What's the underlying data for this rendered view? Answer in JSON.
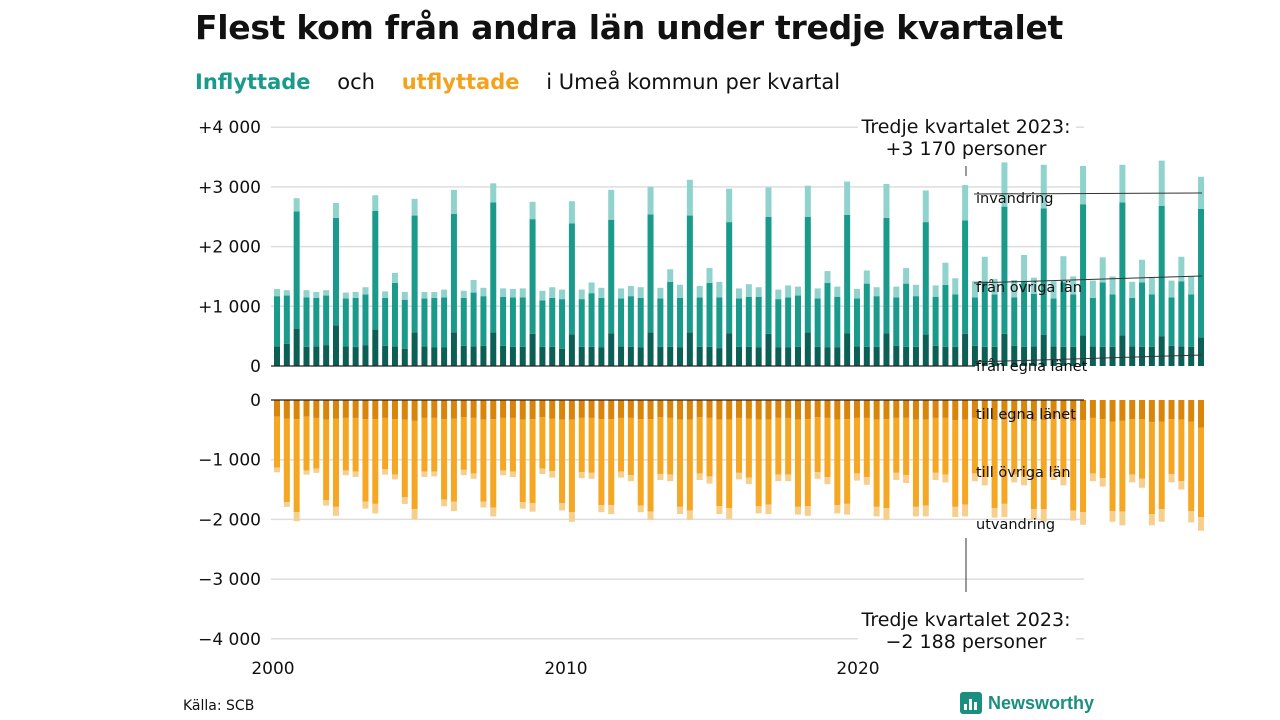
{
  "header": {
    "title": "Flest kom från andra län under tredje kvartalet",
    "subtitle_in": "Inflyttade",
    "subtitle_and": "och",
    "subtitle_out": "utflyttade",
    "subtitle_rest": "i Umeå  kommun  per  kvartal"
  },
  "footer": {
    "source": "Källa: SCB",
    "brand": "Newsworthy"
  },
  "colors": {
    "in_own_county": "#0c5f55",
    "in_other_counties": "#1a9a8a",
    "in_immigration": "#8fd3cc",
    "out_own_county": "#d9850a",
    "out_other_counties": "#f5a623",
    "out_emigration": "#f7cf8c"
  },
  "chart_data": {
    "type": "bar",
    "stacked": true,
    "x_ticks": [
      "2000",
      "2010",
      "2020"
    ],
    "y_ticks_top": [
      "+4 000",
      "+3 000",
      "+2 000",
      "+1 000",
      "0"
    ],
    "y_ticks_bottom": [
      "0",
      "−1 000",
      "−2 000",
      "−3 000",
      "−4 000"
    ],
    "ylim_top": [
      0,
      4000
    ],
    "ylim_bottom": [
      -4000,
      0
    ],
    "grid": true,
    "series_labels": {
      "in_immigration": "invandring",
      "in_other_counties": "från övriga län",
      "in_own_county": "från egna länet",
      "out_own_county": "till egna länet",
      "out_other_counties": "till övriga län",
      "out_emigration": "utvandring"
    },
    "annotations": {
      "top_line1": "Tredje kvartalet 2023:",
      "top_line2": "+3 170 personer",
      "bottom_line1": "Tredje kvartalet 2023:",
      "bottom_line2": "−2 188 personer"
    },
    "quarters": [
      "2000 Q1",
      "2000 Q2",
      "2000 Q3",
      "2000 Q4",
      "2001 Q1",
      "2001 Q2",
      "2001 Q3",
      "2001 Q4",
      "2002 Q1",
      "2002 Q2",
      "2002 Q3",
      "2002 Q4",
      "2003 Q1",
      "2003 Q2",
      "2003 Q3",
      "2003 Q4",
      "2004 Q1",
      "2004 Q2",
      "2004 Q3",
      "2004 Q4",
      "2005 Q1",
      "2005 Q2",
      "2005 Q3",
      "2005 Q4",
      "2006 Q1",
      "2006 Q2",
      "2006 Q3",
      "2006 Q4",
      "2007 Q1",
      "2007 Q2",
      "2007 Q3",
      "2007 Q4",
      "2008 Q1",
      "2008 Q2",
      "2008 Q3",
      "2008 Q4",
      "2009 Q1",
      "2009 Q2",
      "2009 Q3",
      "2009 Q4",
      "2010 Q1",
      "2010 Q2",
      "2010 Q3",
      "2010 Q4",
      "2011 Q1",
      "2011 Q2",
      "2011 Q3",
      "2011 Q4",
      "2012 Q1",
      "2012 Q2",
      "2012 Q3",
      "2012 Q4",
      "2013 Q1",
      "2013 Q2",
      "2013 Q3",
      "2013 Q4",
      "2014 Q1",
      "2014 Q2",
      "2014 Q3",
      "2014 Q4",
      "2015 Q1",
      "2015 Q2",
      "2015 Q3",
      "2015 Q4",
      "2016 Q1",
      "2016 Q2",
      "2016 Q3",
      "2016 Q4",
      "2017 Q1",
      "2017 Q2",
      "2017 Q3",
      "2017 Q4",
      "2018 Q1",
      "2018 Q2",
      "2018 Q3",
      "2018 Q4",
      "2019 Q1",
      "2019 Q2",
      "2019 Q3",
      "2019 Q4",
      "2020 Q1",
      "2020 Q2",
      "2020 Q3",
      "2020 Q4",
      "2021 Q1",
      "2021 Q2",
      "2021 Q3",
      "2021 Q4",
      "2022 Q1",
      "2022 Q2",
      "2022 Q3",
      "2022 Q4",
      "2023 Q1",
      "2023 Q2",
      "2023 Q3"
    ],
    "in_own_county": [
      330,
      370,
      620,
      320,
      330,
      350,
      680,
      330,
      320,
      350,
      610,
      340,
      330,
      290,
      560,
      330,
      310,
      310,
      560,
      340,
      330,
      340,
      560,
      340,
      320,
      320,
      540,
      320,
      320,
      290,
      530,
      320,
      320,
      310,
      550,
      330,
      320,
      310,
      560,
      320,
      320,
      310,
      560,
      320,
      320,
      300,
      550,
      320,
      320,
      310,
      540,
      310,
      310,
      320,
      560,
      320,
      310,
      310,
      550,
      330,
      320,
      320,
      550,
      340,
      320,
      320,
      530,
      340,
      320,
      320,
      540,
      340,
      320,
      320,
      540,
      340,
      320,
      330,
      520,
      330,
      320,
      320,
      510,
      330,
      320,
      320,
      510,
      330,
      320,
      320,
      500,
      340,
      330,
      320,
      480
    ],
    "in_other_counties": [
      840,
      810,
      1970,
      830,
      810,
      830,
      1800,
      800,
      820,
      850,
      1990,
      800,
      1060,
      820,
      1960,
      800,
      830,
      840,
      1990,
      800,
      900,
      830,
      2180,
      820,
      830,
      830,
      1920,
      780,
      820,
      830,
      1860,
      800,
      900,
      830,
      1900,
      800,
      850,
      830,
      1980,
      810,
      1090,
      830,
      1960,
      830,
      1070,
      850,
      1860,
      810,
      840,
      850,
      1960,
      810,
      840,
      860,
      1940,
      810,
      1080,
      850,
      1980,
      800,
      1060,
      850,
      1930,
      810,
      1060,
      850,
      1880,
      820,
      1040,
      880,
      1900,
      810,
      1100,
      880,
      2130,
      810,
      1100,
      880,
      2120,
      800,
      1080,
      880,
      2200,
      810,
      1080,
      880,
      2230,
      810,
      1080,
      880,
      2180,
      810,
      1090,
      880,
      2150
    ],
    "in_immigration": [
      120,
      90,
      220,
      120,
      100,
      90,
      250,
      100,
      100,
      120,
      260,
      110,
      170,
      130,
      280,
      110,
      100,
      130,
      400,
      120,
      210,
      140,
      320,
      140,
      140,
      150,
      290,
      160,
      180,
      160,
      370,
      160,
      180,
      170,
      500,
      170,
      170,
      180,
      460,
      180,
      210,
      220,
      600,
      190,
      250,
      260,
      560,
      170,
      210,
      160,
      490,
      160,
      200,
      150,
      520,
      170,
      200,
      170,
      560,
      160,
      220,
      150,
      570,
      180,
      260,
      190,
      530,
      190,
      370,
      270,
      590,
      270,
      410,
      260,
      740,
      290,
      440,
      270,
      730,
      290,
      440,
      300,
      640,
      290,
      420,
      300,
      630,
      270,
      380,
      280,
      760,
      280,
      410,
      300,
      540
    ],
    "out_own_county": [
      280,
      310,
      320,
      280,
      300,
      330,
      310,
      300,
      300,
      320,
      320,
      300,
      320,
      330,
      350,
      300,
      300,
      320,
      310,
      290,
      300,
      330,
      320,
      300,
      300,
      330,
      320,
      290,
      310,
      330,
      330,
      300,
      300,
      320,
      320,
      300,
      300,
      320,
      320,
      290,
      300,
      330,
      330,
      290,
      300,
      330,
      330,
      300,
      310,
      330,
      330,
      300,
      300,
      330,
      320,
      290,
      300,
      330,
      320,
      300,
      300,
      330,
      320,
      300,
      300,
      330,
      330,
      300,
      300,
      340,
      330,
      300,
      310,
      340,
      330,
      310,
      310,
      350,
      340,
      300,
      310,
      350,
      340,
      300,
      320,
      360,
      350,
      320,
      320,
      370,
      360,
      320,
      330,
      360,
      460
    ],
    "out_other_counties": [
      850,
      1400,
      1560,
      900,
      850,
      1350,
      1480,
      880,
      900,
      1380,
      1420,
      860,
      930,
      1300,
      1480,
      900,
      900,
      1350,
      1390,
      880,
      930,
      1370,
      1480,
      880,
      900,
      1380,
      1410,
      860,
      880,
      1400,
      1550,
      910,
      920,
      1440,
      1440,
      900,
      960,
      1450,
      1550,
      950,
      950,
      1460,
      1520,
      940,
      980,
      1450,
      1480,
      920,
      990,
      1450,
      1420,
      950,
      950,
      1460,
      1460,
      920,
      990,
      1430,
      1420,
      930,
      990,
      1460,
      1490,
      920,
      960,
      1460,
      1440,
      920,
      950,
      1450,
      1420,
      930,
      980,
      1470,
      1410,
      940,
      970,
      1480,
      1490,
      910,
      980,
      1500,
      1540,
      930,
      990,
      1500,
      1520,
      930,
      1000,
      1540,
      1470,
      920,
      1030,
      1500,
      1500
    ],
    "out_emigration": [
      80,
      80,
      150,
      70,
      70,
      90,
      150,
      80,
      90,
      120,
      160,
      90,
      80,
      110,
      170,
      90,
      80,
      110,
      160,
      90,
      90,
      100,
      150,
      80,
      90,
      110,
      140,
      90,
      110,
      120,
      160,
      100,
      100,
      120,
      150,
      100,
      100,
      110,
      140,
      100,
      110,
      120,
      160,
      110,
      120,
      130,
      180,
      110,
      110,
      120,
      160,
      110,
      110,
      130,
      160,
      110,
      120,
      140,
      180,
      120,
      130,
      160,
      200,
      120,
      130,
      160,
      180,
      120,
      130,
      170,
      200,
      130,
      140,
      160,
      220,
      130,
      150,
      170,
      210,
      130,
      140,
      170,
      210,
      130,
      140,
      180,
      230,
      130,
      150,
      190,
      210,
      140,
      140,
      190,
      230
    ]
  }
}
